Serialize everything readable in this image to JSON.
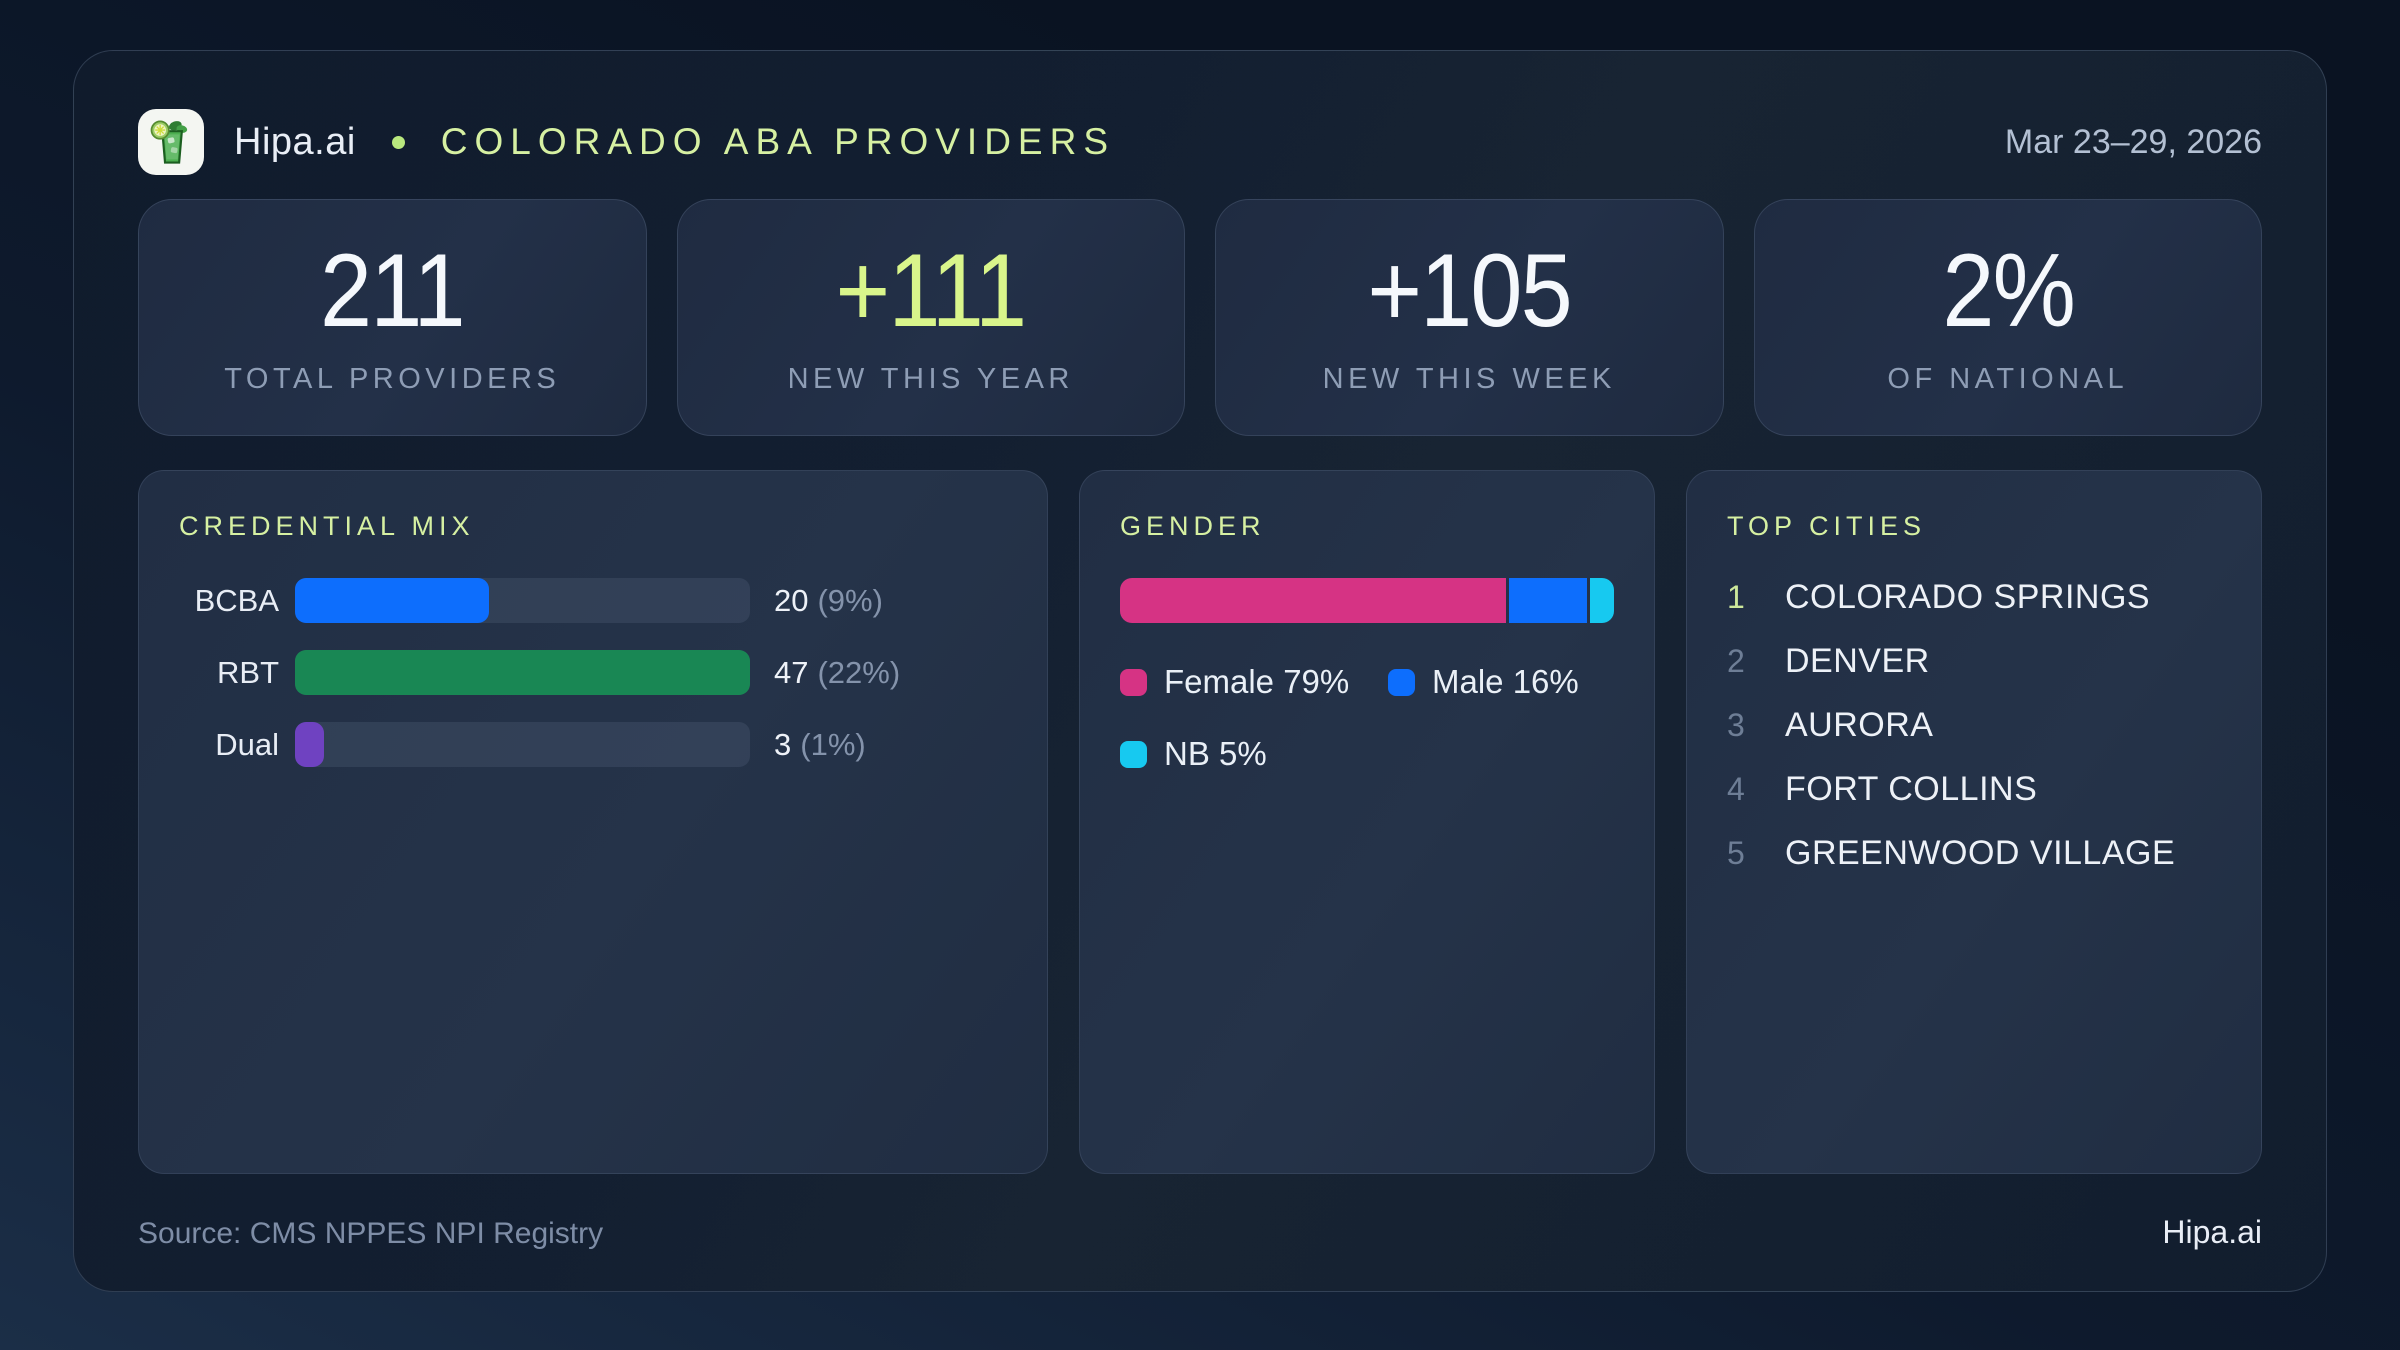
{
  "header": {
    "brand": "Hipa.ai",
    "title": "COLORADO ABA PROVIDERS",
    "date_range": "Mar 23–29, 2026",
    "logo_icon": "mojito-glass-icon",
    "accent_color": "#d6f0a2"
  },
  "stats": [
    {
      "value": "211",
      "label": "TOTAL PROVIDERS",
      "highlight": false
    },
    {
      "value": "+111",
      "label": "NEW THIS YEAR",
      "highlight": true
    },
    {
      "value": "+105",
      "label": "NEW THIS WEEK",
      "highlight": false
    },
    {
      "value": "2%",
      "label": "OF NATIONAL",
      "highlight": false
    }
  ],
  "credential_mix": {
    "title": "CREDENTIAL MIX",
    "rows": [
      {
        "label": "BCBA",
        "value_text": "20",
        "pct_text": "(9%)",
        "fill_pct": 42.6,
        "color": "#0d6efd"
      },
      {
        "label": "RBT",
        "value_text": "47",
        "pct_text": "(22%)",
        "fill_pct": 100,
        "color": "#198754"
      },
      {
        "label": "Dual",
        "value_text": "3",
        "pct_text": "(1%)",
        "fill_pct": 6.4,
        "color": "#6f42c1"
      }
    ]
  },
  "gender": {
    "title": "GENDER",
    "segments": [
      {
        "name": "Female",
        "pct": 79,
        "color": "#d63384",
        "legend": "Female 79%"
      },
      {
        "name": "Male",
        "pct": 16,
        "color": "#0d6efd",
        "legend": "Male 16%"
      },
      {
        "name": "NB",
        "pct": 5,
        "color": "#17c9f0",
        "legend": "NB 5%"
      }
    ]
  },
  "top_cities": {
    "title": "TOP CITIES",
    "items": [
      {
        "rank": "1",
        "name": "COLORADO SPRINGS"
      },
      {
        "rank": "2",
        "name": "DENVER"
      },
      {
        "rank": "3",
        "name": "AURORA"
      },
      {
        "rank": "4",
        "name": "FORT COLLINS"
      },
      {
        "rank": "5",
        "name": "GREENWOOD VILLAGE"
      }
    ]
  },
  "footer": {
    "source": "Source: CMS NPPES NPI Registry",
    "brand": "Hipa.ai"
  },
  "chart_data": [
    {
      "type": "bar",
      "orientation": "horizontal",
      "title": "CREDENTIAL MIX",
      "categories": [
        "BCBA",
        "RBT",
        "Dual"
      ],
      "values": [
        20,
        47,
        3
      ],
      "value_labels": [
        "20 (9%)",
        "47 (22%)",
        "3 (1%)"
      ],
      "percent_of_total": [
        9,
        22,
        1
      ],
      "colors": [
        "#0d6efd",
        "#198754",
        "#6f42c1"
      ],
      "xlim": [
        0,
        47
      ],
      "grid": false,
      "legend_position": "none"
    },
    {
      "type": "bar",
      "variant": "stacked-percent",
      "title": "GENDER",
      "series": [
        {
          "name": "Female",
          "value": 79,
          "color": "#d63384"
        },
        {
          "name": "Male",
          "value": 16,
          "color": "#0d6efd"
        },
        {
          "name": "NB",
          "value": 5,
          "color": "#17c9f0"
        }
      ],
      "unit": "%",
      "xlim": [
        0,
        100
      ],
      "grid": false,
      "legend_position": "below"
    }
  ]
}
